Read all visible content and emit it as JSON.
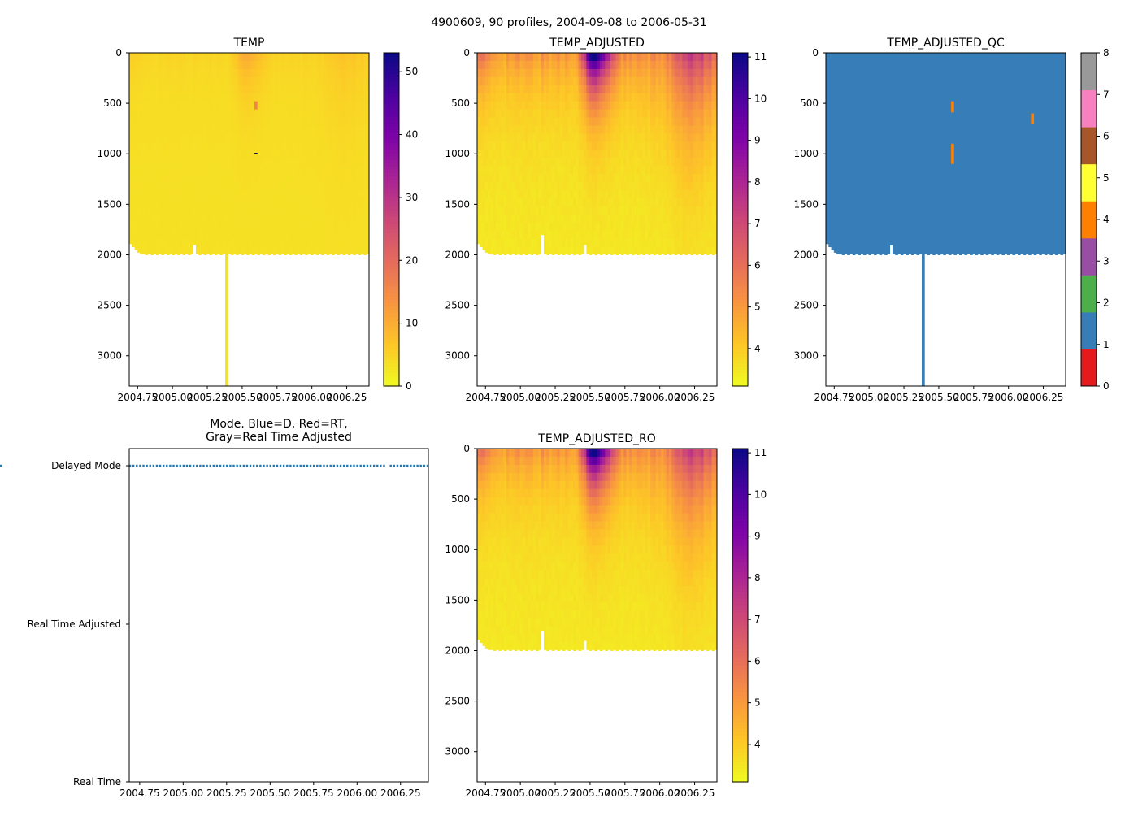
{
  "figure_title": "4900609, 90 profiles, 2004-09-08 to 2006-05-31",
  "chart_data": [
    {
      "id": "temp",
      "type": "heatmap",
      "title": "TEMP",
      "n_profiles": 90,
      "date_start": "2004-09-08",
      "date_end": "2006-05-31",
      "xlim": [
        2004.69,
        2006.41
      ],
      "x_ticks": [
        "2004.75",
        "2005.00",
        "2005.25",
        "2005.50",
        "2005.75",
        "2006.00",
        "2006.25"
      ],
      "ylim": [
        3300,
        0
      ],
      "y_ticks": [
        "0",
        "500",
        "1000",
        "1500",
        "2000",
        "2500",
        "3000"
      ],
      "colorbar": {
        "cmap": "plasma_r",
        "range": [
          0,
          53
        ],
        "ticks": [
          "0",
          "10",
          "20",
          "30",
          "40",
          "50"
        ]
      },
      "typical_max_depth": 2000,
      "deep_profile": {
        "time": 2005.38,
        "max_depth": 3300
      },
      "anomalies": [
        {
          "time": 2005.58,
          "depth_from": 480,
          "depth_to": 560,
          "value": 16
        },
        {
          "time": 2005.58,
          "depth_from": 990,
          "depth_to": 1005,
          "value": 53
        }
      ]
    },
    {
      "id": "temp_adjusted",
      "type": "heatmap",
      "title": "TEMP_ADJUSTED",
      "xlim": [
        2004.69,
        2006.41
      ],
      "x_ticks": [
        "2004.75",
        "2005.00",
        "2005.25",
        "2005.50",
        "2005.75",
        "2006.00",
        "2006.25"
      ],
      "ylim": [
        3300,
        0
      ],
      "y_ticks": [
        "0",
        "500",
        "1000",
        "1500",
        "2000",
        "2500",
        "3000"
      ],
      "colorbar": {
        "cmap": "plasma_r",
        "range": [
          3.1,
          11.1
        ],
        "ticks": [
          "4",
          "5",
          "6",
          "7",
          "8",
          "9",
          "10",
          "11"
        ]
      },
      "typical_max_depth": 2000,
      "surface_range": [
        5,
        11
      ],
      "deep_value": 3.3
    },
    {
      "id": "temp_adjusted_qc",
      "type": "heatmap",
      "title": "TEMP_ADJUSTED_QC",
      "xlim": [
        2004.69,
        2006.41
      ],
      "x_ticks": [
        "2004.75",
        "2005.00",
        "2005.25",
        "2005.50",
        "2005.75",
        "2006.00",
        "2006.25"
      ],
      "ylim": [
        3300,
        0
      ],
      "y_ticks": [
        "0",
        "500",
        "1000",
        "1500",
        "2000",
        "2500",
        "3000"
      ],
      "colorbar": {
        "type": "discrete",
        "range": [
          0,
          8
        ],
        "ticks": [
          "0",
          "1",
          "2",
          "3",
          "4",
          "5",
          "6",
          "7",
          "8"
        ],
        "colors": [
          "#e41a1c",
          "#377eb8",
          "#4daf4a",
          "#984ea3",
          "#ff7f00",
          "#ffff33",
          "#a65628",
          "#f781bf",
          "#999999"
        ]
      },
      "dominant_flag": 1,
      "anomalies": [
        {
          "time": 2005.58,
          "depth_from": 480,
          "depth_to": 590,
          "flag": 4
        },
        {
          "time": 2005.58,
          "depth_from": 900,
          "depth_to": 1100,
          "flag": 4
        },
        {
          "time": 2006.17,
          "depth_from": 600,
          "depth_to": 700,
          "flag": 4
        }
      ]
    },
    {
      "id": "mode",
      "type": "scatter",
      "title": "Mode. Blue=D, Red=RT,",
      "title_line2": "Gray=Real Time Adjusted",
      "xlim": [
        2004.69,
        2006.41
      ],
      "x_ticks": [
        "2004.75",
        "2005.00",
        "2005.25",
        "2005.50",
        "2005.75",
        "2006.00",
        "2006.25"
      ],
      "y_categories": [
        "Real Time",
        "Real Time Adjusted",
        "Delayed Mode"
      ],
      "modes": "DDDDDDDDDDDDDDDDDDDDDDDDDDDDDDDDDDDDDDDDDDDDDDDDDDDDDDDDDDDDDDDDDDDDDDDDDDDDD-DDDDDDDDDDDDD",
      "color": "#1f77b4"
    },
    {
      "id": "temp_adjusted_ro",
      "type": "heatmap",
      "title": "TEMP_ADJUSTED_RO",
      "xlim": [
        2004.69,
        2006.41
      ],
      "x_ticks": [
        "2004.75",
        "2005.00",
        "2005.25",
        "2005.50",
        "2005.75",
        "2006.00",
        "2006.25"
      ],
      "ylim": [
        3300,
        0
      ],
      "y_ticks": [
        "0",
        "500",
        "1000",
        "1500",
        "2000",
        "2500",
        "3000"
      ],
      "colorbar": {
        "cmap": "plasma_r",
        "range": [
          3.1,
          11.1
        ],
        "ticks": [
          "4",
          "5",
          "6",
          "7",
          "8",
          "9",
          "10",
          "11"
        ]
      },
      "typical_max_depth": 2000
    }
  ]
}
